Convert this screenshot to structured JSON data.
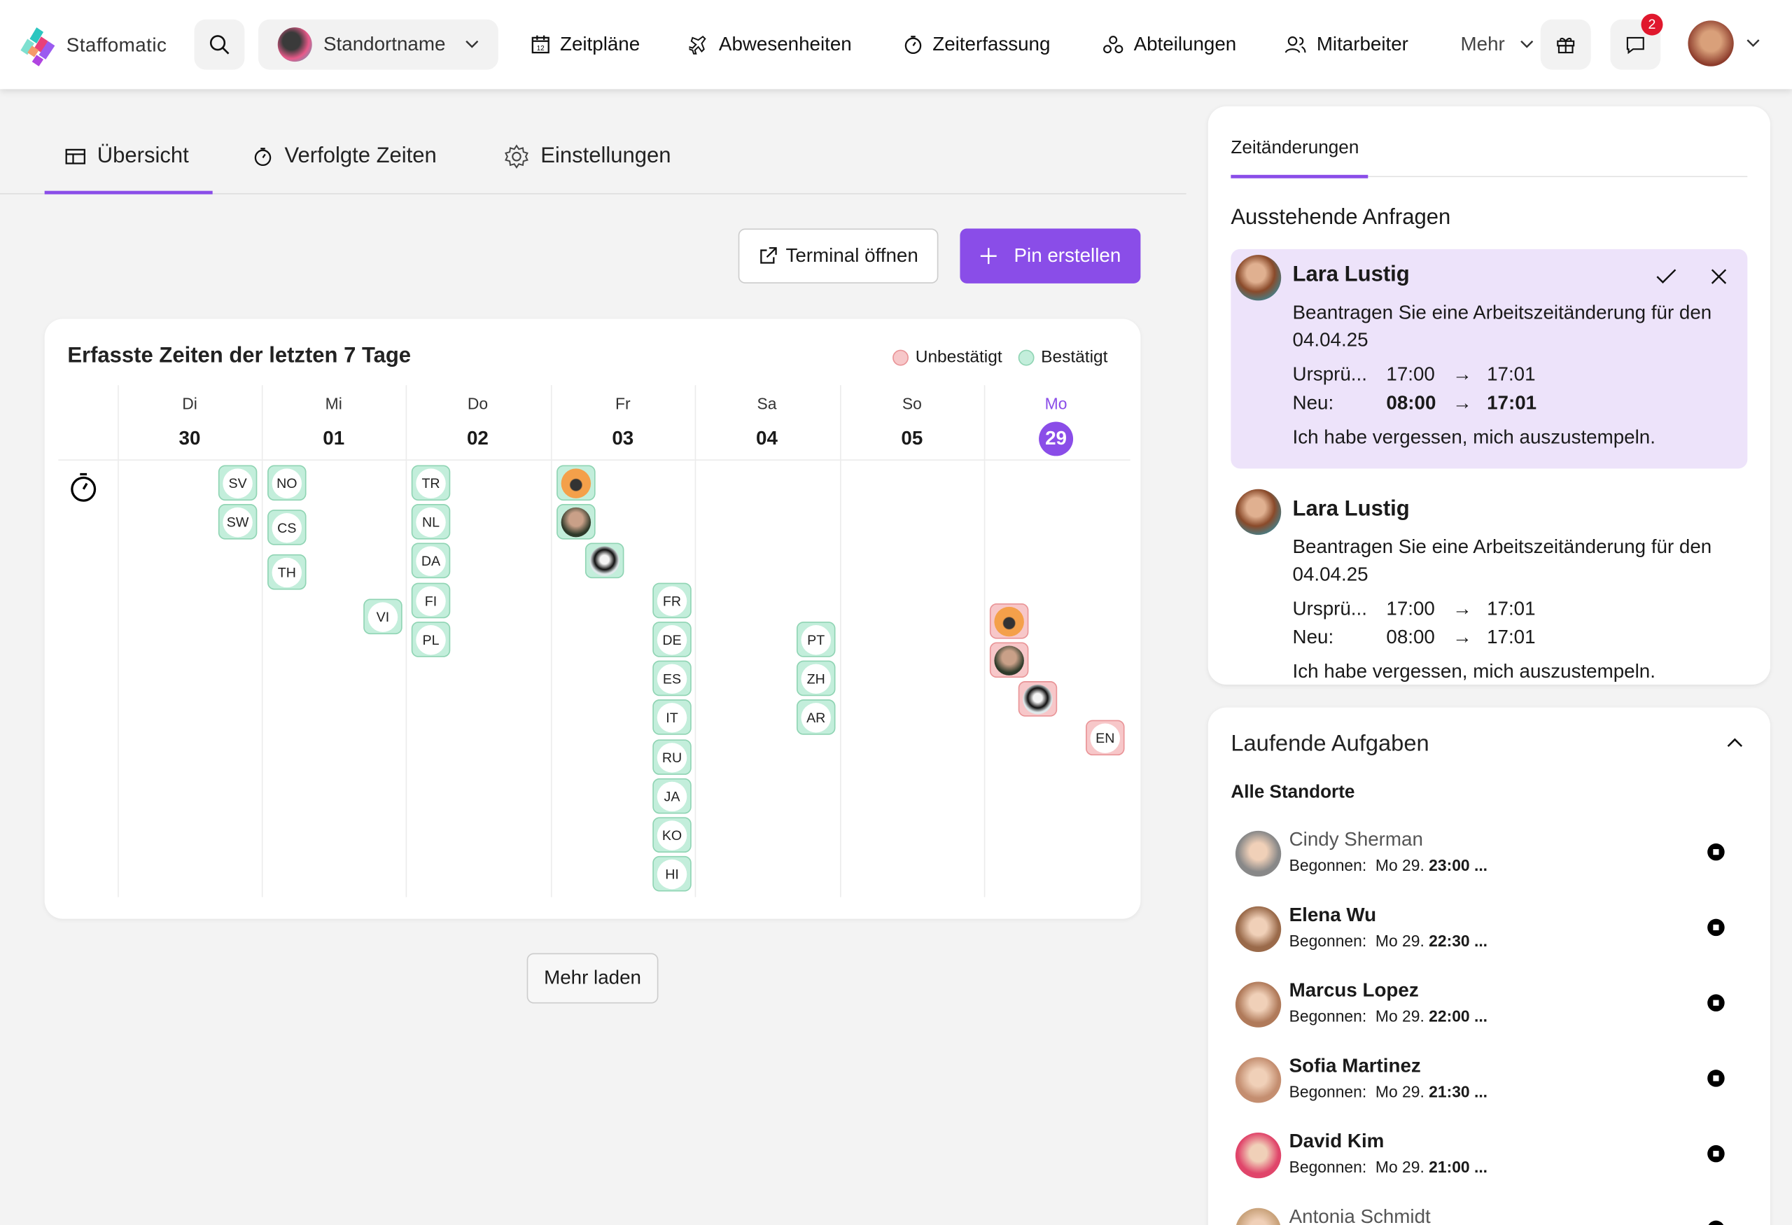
{
  "colors": {
    "accent": "#8a4de8",
    "confirmed": "#c3eedb",
    "unconfirmed": "#f7c7c9",
    "request_bg": "#ede3fa"
  },
  "topbar": {
    "brand": "Staffomatic",
    "location": "Standortname",
    "nav": [
      {
        "label": "Zeitpläne",
        "icon": "calendar-icon"
      },
      {
        "label": "Abwesenheiten",
        "icon": "plane-icon"
      },
      {
        "label": "Zeiterfassung",
        "icon": "stopwatch-icon"
      },
      {
        "label": "Abteilungen",
        "icon": "departments-icon"
      },
      {
        "label": "Mitarbeiter",
        "icon": "users-icon"
      }
    ],
    "more": "Mehr",
    "notification_count": "2"
  },
  "tabs": [
    {
      "label": "Übersicht",
      "icon": "table-icon",
      "active": true
    },
    {
      "label": "Verfolgte Zeiten",
      "icon": "stopwatch-icon"
    },
    {
      "label": "Einstellungen",
      "icon": "gear-icon"
    }
  ],
  "actions": {
    "terminal": "Terminal öffnen",
    "pin": "Pin erstellen"
  },
  "card": {
    "title": "Erfasste Zeiten der letzten 7 Tage",
    "legend": {
      "unconfirmed": "Unbestätigt",
      "confirmed": "Bestätigt"
    },
    "days": [
      {
        "name": "Di",
        "date": "30"
      },
      {
        "name": "Mi",
        "date": "01"
      },
      {
        "name": "Do",
        "date": "02"
      },
      {
        "name": "Fr",
        "date": "03"
      },
      {
        "name": "Sa",
        "date": "04"
      },
      {
        "name": "So",
        "date": "05"
      },
      {
        "name": "Mo",
        "date": "29",
        "today": true
      }
    ],
    "chips": [
      {
        "label": "SV",
        "status": "confirmed"
      },
      {
        "label": "SW",
        "status": "confirmed"
      },
      {
        "label": "NO",
        "status": "confirmed"
      },
      {
        "label": "CS",
        "status": "confirmed"
      },
      {
        "label": "TH",
        "status": "confirmed"
      },
      {
        "label": "VI",
        "status": "confirmed"
      },
      {
        "label": "TR",
        "status": "confirmed"
      },
      {
        "label": "NL",
        "status": "confirmed"
      },
      {
        "label": "DA",
        "status": "confirmed"
      },
      {
        "label": "FI",
        "status": "confirmed"
      },
      {
        "label": "PL",
        "status": "confirmed"
      },
      {
        "label": "",
        "avatar": "ostrich",
        "status": "confirmed"
      },
      {
        "label": "",
        "avatar": "man",
        "status": "confirmed"
      },
      {
        "label": "",
        "avatar": "cow",
        "status": "confirmed"
      },
      {
        "label": "FR",
        "status": "confirmed"
      },
      {
        "label": "DE",
        "status": "confirmed"
      },
      {
        "label": "ES",
        "status": "confirmed"
      },
      {
        "label": "IT",
        "status": "confirmed"
      },
      {
        "label": "RU",
        "status": "confirmed"
      },
      {
        "label": "JA",
        "status": "confirmed"
      },
      {
        "label": "KO",
        "status": "confirmed"
      },
      {
        "label": "HI",
        "status": "confirmed"
      },
      {
        "label": "PT",
        "status": "confirmed"
      },
      {
        "label": "ZH",
        "status": "confirmed"
      },
      {
        "label": "AR",
        "status": "confirmed"
      },
      {
        "label": "",
        "avatar": "ostrich",
        "status": "unconfirmed"
      },
      {
        "label": "",
        "avatar": "man",
        "status": "unconfirmed"
      },
      {
        "label": "",
        "avatar": "cow",
        "status": "unconfirmed"
      },
      {
        "label": "EN",
        "status": "unconfirmed"
      }
    ]
  },
  "load_more": "Mehr laden",
  "requests_panel": {
    "tab": "Zeitänderungen",
    "heading": "Ausstehende Anfragen",
    "requests": [
      {
        "name": "Lara Lustig",
        "text": "Beantragen Sie eine Arbeitszeitänderung für den 04.04.25",
        "orig_label": "Ursprü...",
        "orig_from": "17:00",
        "orig_to": "17:01",
        "new_label": "Neu:",
        "new_from": "08:00",
        "new_to": "17:01",
        "reason": "Ich habe vergessen, mich auszustempeln.",
        "highlighted": true
      },
      {
        "name": "Lara Lustig",
        "text": "Beantragen Sie eine Arbeitszeitänderung für den 04.04.25",
        "orig_label": "Ursprü...",
        "orig_from": "17:00",
        "orig_to": "17:01",
        "new_label": "Neu:",
        "new_from": "08:00",
        "new_to": "17:01",
        "reason": "Ich habe vergessen, mich auszustempeln."
      }
    ]
  },
  "tasks_panel": {
    "heading": "Laufende Aufgaben",
    "subheading": "Alle Standorte",
    "started_label": "Begonnen:",
    "tasks": [
      {
        "name": "Cindy Sherman",
        "day": "Mo 29.",
        "time": "23:00 ...",
        "muted": true,
        "color": "#888"
      },
      {
        "name": "Elena Wu",
        "day": "Mo 29.",
        "time": "22:30 ...",
        "color": "#9a6a4a"
      },
      {
        "name": "Marcus Lopez",
        "day": "Mo 29.",
        "time": "22:00 ...",
        "color": "#b07a5a"
      },
      {
        "name": "Sofia Martinez",
        "day": "Mo 29.",
        "time": "21:30 ...",
        "color": "#c48e70"
      },
      {
        "name": "David Kim",
        "day": "Mo 29.",
        "time": "21:00 ...",
        "color": "#e0456a"
      },
      {
        "name": "Antonia Schmidt",
        "muted": true,
        "color": "#c9a27a"
      }
    ]
  }
}
